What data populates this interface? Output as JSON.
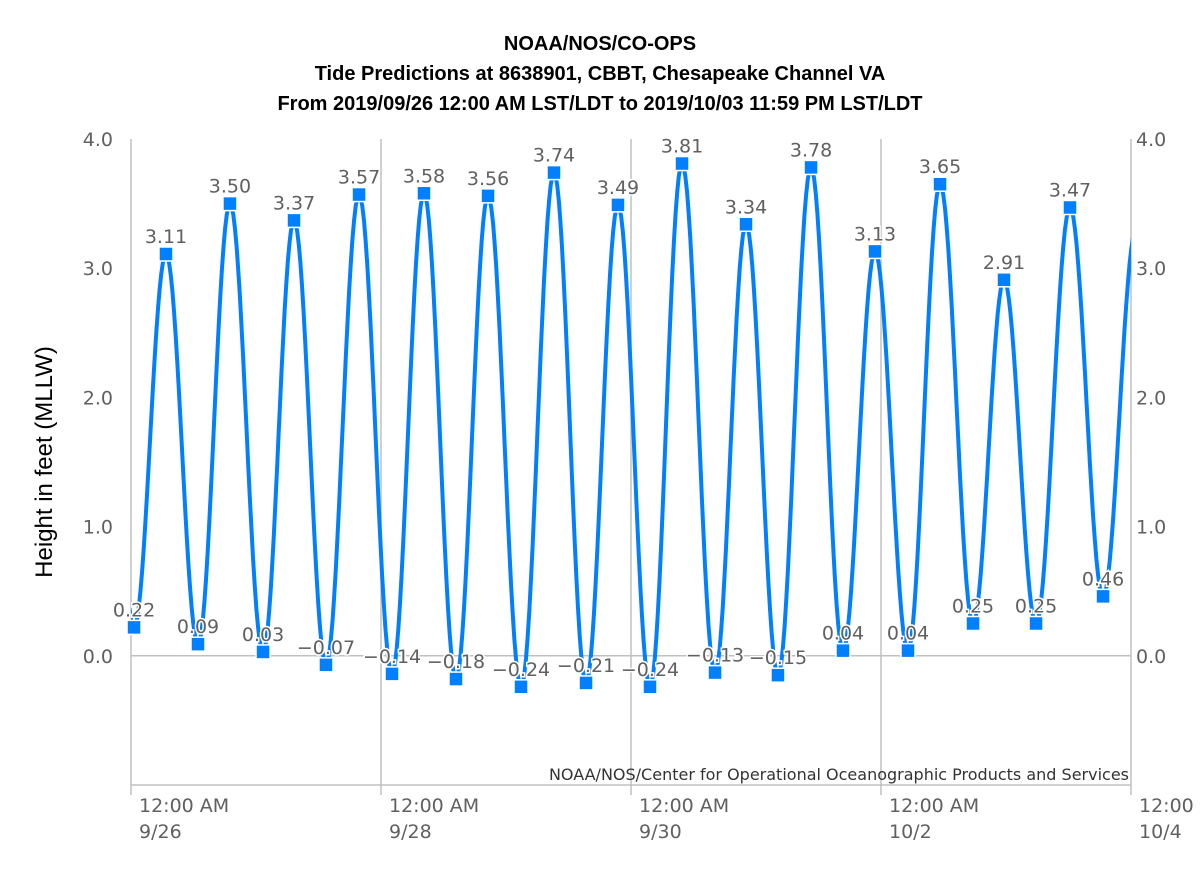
{
  "chart_data": {
    "type": "line",
    "title": "NOAA/NOS/CO-OPS",
    "subtitle1": "Tide Predictions at 8638901, CBBT, Chesapeake Channel VA",
    "subtitle2": "From 2019/09/26 12:00 AM LST/LDT to 2019/10/03 11:59 PM LST/LDT",
    "ylabel": "Height in feet (MLLW)",
    "credit": "NOAA/NOS/Center for Operational Oceanographic Products and Services",
    "ylim": [
      -1,
      4
    ],
    "yticks": [
      "4.0",
      "3.0",
      "2.0",
      "1.0",
      "0.0"
    ],
    "xlim": [
      "2019-09-26 00:00",
      "2019-10-04 00:00"
    ],
    "xticks": [
      {
        "time": "12:00 AM",
        "date": "9/26"
      },
      {
        "time": "12:00 AM",
        "date": "9/28"
      },
      {
        "time": "12:00 AM",
        "date": "9/30"
      },
      {
        "time": "12:00 AM",
        "date": "10/2"
      },
      {
        "time": "12:00",
        "date": "10/4"
      }
    ],
    "grid": "vertical lines at x ticks, horizontal line at 0.0",
    "line_color": "#0080ff",
    "label_color": "#606060",
    "points": [
      [
        "2019-09-26 00:35",
        0.22
      ],
      [
        "2019-09-26 06:43",
        3.11
      ],
      [
        "2019-09-26 12:52",
        0.09
      ],
      [
        "2019-09-26 19:00",
        3.5
      ],
      [
        "2019-09-27 01:21",
        0.03
      ],
      [
        "2019-09-27 07:18",
        3.37
      ],
      [
        "2019-09-27 13:26",
        -0.07
      ],
      [
        "2019-09-27 19:47",
        3.57
      ],
      [
        "2019-09-28 02:07",
        -0.14
      ],
      [
        "2019-09-28 08:15",
        3.58
      ],
      [
        "2019-09-28 14:24",
        -0.18
      ],
      [
        "2019-09-28 20:33",
        3.56
      ],
      [
        "2019-09-29 02:53",
        -0.24
      ],
      [
        "2019-09-29 09:13",
        3.74
      ],
      [
        "2019-09-29 15:22",
        -0.21
      ],
      [
        "2019-09-29 21:30",
        3.49
      ],
      [
        "2019-09-30 03:39",
        -0.24
      ],
      [
        "2019-09-30 09:48",
        3.81
      ],
      [
        "2019-09-30 16:08",
        -0.13
      ],
      [
        "2019-09-30 22:05",
        3.34
      ],
      [
        "2019-10-01 04:13",
        -0.15
      ],
      [
        "2019-10-01 10:34",
        3.78
      ],
      [
        "2019-10-01 16:42",
        0.04
      ],
      [
        "2019-10-01 22:51",
        3.13
      ],
      [
        "2019-10-02 05:11",
        0.04
      ],
      [
        "2019-10-02 11:20",
        3.65
      ],
      [
        "2019-10-02 17:40",
        0.25
      ],
      [
        "2019-10-02 23:37",
        2.91
      ],
      [
        "2019-10-03 05:46",
        0.25
      ],
      [
        "2019-10-03 12:17",
        3.47
      ],
      [
        "2019-10-03 18:38",
        0.46
      ]
    ]
  }
}
